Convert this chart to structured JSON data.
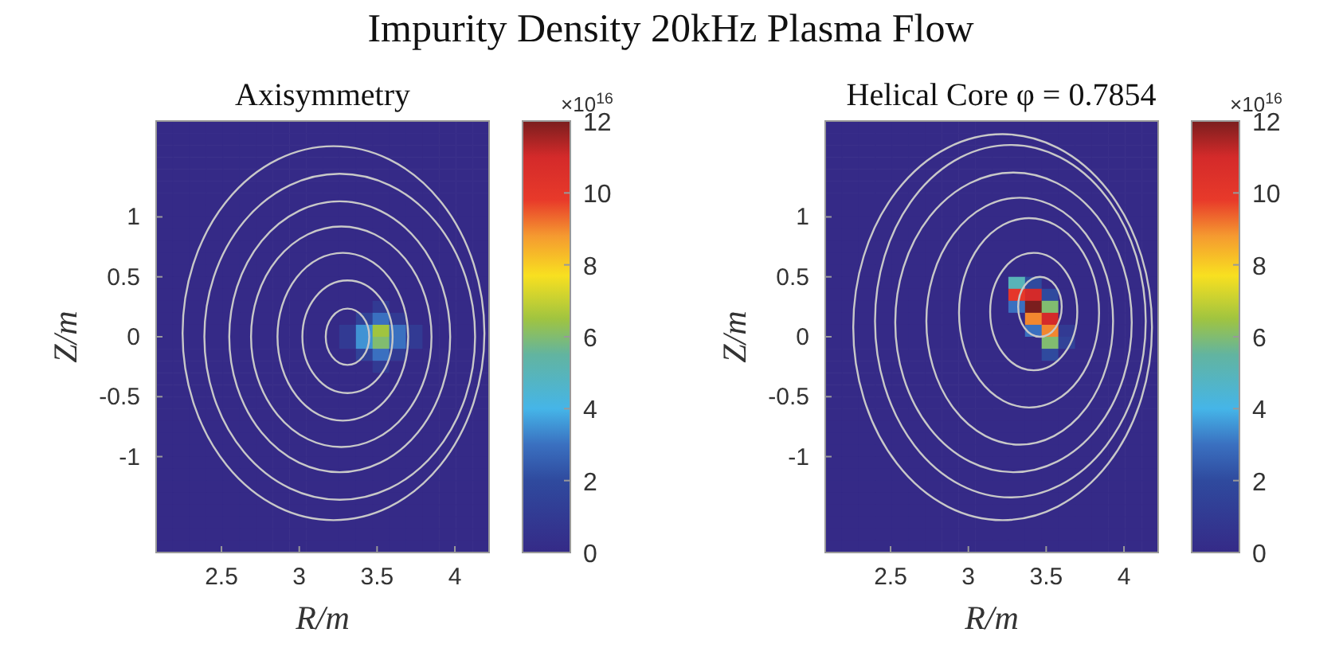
{
  "chart_data": [
    {
      "type": "heatmap",
      "title": "Impurity Density 20kHz Plasma Flow",
      "subtitle": "Axisymmetry",
      "xlabel": "R/m",
      "ylabel": "Z/m",
      "clabel": "×10$^{16}$",
      "xlim": [
        2.08,
        4.22
      ],
      "ylim": [
        -1.8,
        1.8
      ],
      "xticks": [
        2.5,
        3,
        3.5,
        4
      ],
      "yticks": [
        -1,
        -0.5,
        0,
        0.5,
        1
      ],
      "clim": [
        0,
        12
      ],
      "cticks": [
        0,
        2,
        4,
        6,
        8,
        10,
        12
      ],
      "cells": [
        [
          0,
          0,
          0,
          0,
          0,
          0,
          0,
          0,
          0,
          0,
          0,
          0,
          0,
          0,
          0,
          0,
          0,
          0,
          0,
          0
        ],
        [
          0,
          0,
          0,
          0,
          0,
          0,
          0,
          0,
          0,
          0,
          0,
          0,
          0,
          0,
          0,
          0,
          0,
          0,
          0,
          0
        ],
        [
          0,
          0,
          0,
          0,
          0,
          0,
          0,
          0,
          0,
          0,
          0,
          0,
          0,
          0,
          0,
          0,
          0,
          0,
          0,
          0
        ],
        [
          0,
          0,
          0,
          0,
          0,
          0,
          0,
          0,
          0,
          0,
          0,
          0,
          0,
          0,
          0,
          0,
          0,
          0,
          0,
          0
        ],
        [
          0,
          0,
          0,
          0,
          0,
          0,
          0,
          0,
          0,
          0,
          0,
          0,
          0,
          0,
          0,
          0,
          0,
          0,
          0,
          0
        ],
        [
          0,
          0,
          0,
          0,
          0,
          0,
          0,
          0,
          0,
          0,
          0,
          0,
          0,
          0,
          0,
          0,
          0,
          0,
          0,
          0
        ],
        [
          0,
          0,
          0,
          0,
          0,
          0,
          0,
          0,
          0,
          0,
          0,
          0,
          0,
          0,
          0,
          0,
          0,
          0,
          0,
          0
        ],
        [
          0,
          0,
          0,
          0,
          0,
          0,
          0,
          0,
          0,
          0,
          0,
          0,
          0,
          0,
          0,
          0,
          0,
          0,
          0,
          0
        ],
        [
          0,
          0,
          0,
          0,
          0,
          0,
          0,
          0,
          0,
          0,
          0,
          0,
          0,
          0,
          0,
          0,
          0,
          0,
          0,
          0
        ],
        [
          0,
          0,
          0,
          0,
          0,
          0,
          0,
          0,
          0,
          0,
          0,
          0,
          0,
          0,
          0,
          0,
          0,
          0,
          0,
          0
        ],
        [
          0,
          0,
          0,
          0,
          0,
          0,
          0,
          0,
          0,
          0,
          0,
          0,
          0,
          0,
          0,
          0,
          0,
          0,
          0,
          0
        ],
        [
          0,
          0,
          0,
          0,
          0,
          0,
          0,
          0,
          0,
          0,
          0,
          0,
          0,
          0,
          0,
          0,
          0,
          0,
          0,
          0
        ],
        [
          0,
          0,
          0,
          0,
          0,
          0,
          0,
          0,
          0,
          0,
          0,
          0,
          0,
          0,
          0,
          0,
          0,
          0,
          0,
          0
        ],
        [
          0,
          0,
          0,
          0,
          0,
          0,
          0,
          0,
          0,
          0,
          0,
          0,
          0,
          0,
          0,
          0,
          0,
          0,
          0,
          0
        ],
        [
          0,
          0,
          0,
          0,
          0,
          0,
          0,
          0,
          0,
          0,
          0,
          0,
          0,
          0,
          0,
          0,
          0,
          0,
          0,
          0
        ],
        [
          0,
          0,
          0,
          0,
          0,
          0,
          0,
          0,
          0,
          0,
          0,
          0,
          0,
          1,
          0,
          0,
          0,
          0,
          0,
          0
        ],
        [
          0,
          0,
          0,
          0,
          0,
          0,
          0,
          0,
          0,
          0,
          0,
          0,
          1.5,
          3,
          1,
          0,
          0,
          0,
          0,
          0
        ],
        [
          0,
          0,
          0,
          0,
          0,
          0,
          0,
          0,
          0,
          0,
          0,
          1,
          3.5,
          6.5,
          3,
          1,
          0,
          0,
          0,
          0
        ],
        [
          0,
          0,
          0,
          0,
          0,
          0,
          0,
          0,
          0,
          0,
          0,
          1,
          3.5,
          6,
          3,
          1,
          0,
          0,
          0,
          0
        ],
        [
          0,
          0,
          0,
          0,
          0,
          0,
          0,
          0,
          0,
          0,
          0,
          0,
          1.5,
          3,
          1,
          0,
          0,
          0,
          0,
          0
        ],
        [
          0,
          0,
          0,
          0,
          0,
          0,
          0,
          0,
          0,
          0,
          0,
          0,
          0,
          1,
          0,
          0,
          0,
          0,
          0,
          0
        ],
        [
          0,
          0,
          0,
          0,
          0,
          0,
          0,
          0,
          0,
          0,
          0,
          0,
          0,
          0,
          0,
          0,
          0,
          0,
          0,
          0
        ],
        [
          0,
          0,
          0,
          0,
          0,
          0,
          0,
          0,
          0,
          0,
          0,
          0,
          0,
          0,
          0,
          0,
          0,
          0,
          0,
          0
        ],
        [
          0,
          0,
          0,
          0,
          0,
          0,
          0,
          0,
          0,
          0,
          0,
          0,
          0,
          0,
          0,
          0,
          0,
          0,
          0,
          0
        ],
        [
          0,
          0,
          0,
          0,
          0,
          0,
          0,
          0,
          0,
          0,
          0,
          0,
          0,
          0,
          0,
          0,
          0,
          0,
          0,
          0
        ],
        [
          0,
          0,
          0,
          0,
          0,
          0,
          0,
          0,
          0,
          0,
          0,
          0,
          0,
          0,
          0,
          0,
          0,
          0,
          0,
          0
        ],
        [
          0,
          0,
          0,
          0,
          0,
          0,
          0,
          0,
          0,
          0,
          0,
          0,
          0,
          0,
          0,
          0,
          0,
          0,
          0,
          0
        ],
        [
          0,
          0,
          0,
          0,
          0,
          0,
          0,
          0,
          0,
          0,
          0,
          0,
          0,
          0,
          0,
          0,
          0,
          0,
          0,
          0
        ],
        [
          0,
          0,
          0,
          0,
          0,
          0,
          0,
          0,
          0,
          0,
          0,
          0,
          0,
          0,
          0,
          0,
          0,
          0,
          0,
          0
        ],
        [
          0,
          0,
          0,
          0,
          0,
          0,
          0,
          0,
          0,
          0,
          0,
          0,
          0,
          0,
          0,
          0,
          0,
          0,
          0,
          0
        ],
        [
          0,
          0,
          0,
          0,
          0,
          0,
          0,
          0,
          0,
          0,
          0,
          0,
          0,
          0,
          0,
          0,
          0,
          0,
          0,
          0
        ],
        [
          0,
          0,
          0,
          0,
          0,
          0,
          0,
          0,
          0,
          0,
          0,
          0,
          0,
          0,
          0,
          0,
          0,
          0,
          0,
          0
        ],
        [
          0,
          0,
          0,
          0,
          0,
          0,
          0,
          0,
          0,
          0,
          0,
          0,
          0,
          0,
          0,
          0,
          0,
          0,
          0,
          0
        ],
        [
          0,
          0,
          0,
          0,
          0,
          0,
          0,
          0,
          0,
          0,
          0,
          0,
          0,
          0,
          0,
          0,
          0,
          0,
          0,
          0
        ],
        [
          0,
          0,
          0,
          0,
          0,
          0,
          0,
          0,
          0,
          0,
          0,
          0,
          0,
          0,
          0,
          0,
          0,
          0,
          0,
          0
        ],
        [
          0,
          0,
          0,
          0,
          0,
          0,
          0,
          0,
          0,
          0,
          0,
          0,
          0,
          0,
          0,
          0,
          0,
          0,
          0,
          0
        ]
      ]
    },
    {
      "type": "heatmap",
      "subtitle": "Helical Core φ = 0.7854",
      "xlabel": "R/m",
      "ylabel": "Z/m",
      "clabel": "×10$^{16}$",
      "xlim": [
        2.08,
        4.22
      ],
      "ylim": [
        -1.8,
        1.8
      ],
      "xticks": [
        2.5,
        3,
        3.5,
        4
      ],
      "yticks": [
        -1,
        -0.5,
        0,
        0.5,
        1
      ],
      "clim": [
        0,
        12
      ],
      "cticks": [
        0,
        2,
        4,
        6,
        8,
        10,
        12
      ],
      "cells": [
        [
          0,
          0,
          0,
          0,
          0,
          0,
          0,
          0,
          0,
          0,
          0,
          0,
          0,
          0,
          0,
          0,
          0,
          0,
          0,
          0
        ],
        [
          0,
          0,
          0,
          0,
          0,
          0,
          0,
          0,
          0,
          0,
          0,
          0,
          0,
          0,
          0,
          0,
          0,
          0,
          0,
          0
        ],
        [
          0,
          0,
          0,
          0,
          0,
          0,
          0,
          0,
          0,
          0,
          0,
          0,
          0,
          0,
          0,
          0,
          0,
          0,
          0,
          0
        ],
        [
          0,
          0,
          0,
          0,
          0,
          0,
          0,
          0,
          0,
          0,
          0,
          0,
          0,
          0,
          0,
          0,
          0,
          0,
          0,
          0
        ],
        [
          0,
          0,
          0,
          0,
          0,
          0,
          0,
          0,
          0,
          0,
          0,
          0,
          0,
          0,
          0,
          0,
          0,
          0,
          0,
          0
        ],
        [
          0,
          0,
          0,
          0,
          0,
          0,
          0,
          0,
          0,
          0,
          0,
          0,
          0,
          0,
          0,
          0,
          0,
          0,
          0,
          0
        ],
        [
          0,
          0,
          0,
          0,
          0,
          0,
          0,
          0,
          0,
          0,
          0,
          0,
          0,
          0,
          0,
          0,
          0,
          0,
          0,
          0
        ],
        [
          0,
          0,
          0,
          0,
          0,
          0,
          0,
          0,
          0,
          0,
          0,
          0,
          0,
          0,
          0,
          0,
          0,
          0,
          0,
          0
        ],
        [
          0,
          0,
          0,
          0,
          0,
          0,
          0,
          0,
          0,
          0,
          0,
          0,
          0,
          0,
          0,
          0,
          0,
          0,
          0,
          0
        ],
        [
          0,
          0,
          0,
          0,
          0,
          0,
          0,
          0,
          0,
          0,
          0,
          0,
          0,
          0,
          0,
          0,
          0,
          0,
          0,
          0
        ],
        [
          0,
          0,
          0,
          0,
          0,
          0,
          0,
          0,
          0,
          0,
          0,
          0,
          0,
          0,
          0,
          0,
          0,
          0,
          0,
          0
        ],
        [
          0,
          0,
          0,
          0,
          0,
          0,
          0,
          0,
          0,
          0,
          0,
          0,
          0,
          0,
          0,
          0,
          0,
          0,
          0,
          0
        ],
        [
          0,
          0,
          0,
          0,
          0,
          0,
          0,
          0,
          0,
          0,
          0,
          0,
          0,
          0,
          0,
          0,
          0,
          0,
          0,
          0
        ],
        [
          0,
          0,
          0,
          0,
          0,
          0,
          0,
          0,
          0,
          0,
          0,
          5,
          2,
          0,
          0,
          0,
          0,
          0,
          0,
          0
        ],
        [
          0,
          0,
          0,
          0,
          0,
          0,
          0,
          0,
          0,
          0,
          0,
          10,
          11,
          2,
          0,
          0,
          0,
          0,
          0,
          0
        ],
        [
          0,
          0,
          0,
          0,
          0,
          0,
          0,
          0,
          0,
          0,
          0,
          3,
          12,
          6,
          0,
          0,
          0,
          0,
          0,
          0
        ],
        [
          0,
          0,
          0,
          0,
          0,
          0,
          0,
          0,
          0,
          0,
          0,
          0,
          9,
          11,
          0,
          0,
          0,
          0,
          0,
          0
        ],
        [
          0,
          0,
          0,
          0,
          0,
          0,
          0,
          0,
          0,
          0,
          0,
          0,
          3,
          9,
          1,
          0,
          0,
          0,
          0,
          0
        ],
        [
          0,
          0,
          0,
          0,
          0,
          0,
          0,
          0,
          0,
          0,
          0,
          0,
          0,
          6,
          1.5,
          0,
          0,
          0,
          0,
          0
        ],
        [
          0,
          0,
          0,
          0,
          0,
          0,
          0,
          0,
          0,
          0,
          0,
          0,
          0,
          2,
          0,
          0,
          0,
          0,
          0,
          0
        ],
        [
          0,
          0,
          0,
          0,
          0,
          0,
          0,
          0,
          0,
          0,
          0,
          0,
          0,
          0,
          0,
          0,
          0,
          0,
          0,
          0
        ],
        [
          0,
          0,
          0,
          0,
          0,
          0,
          0,
          0,
          0,
          0,
          0,
          0,
          0,
          0,
          0,
          0,
          0,
          0,
          0,
          0
        ],
        [
          0,
          0,
          0,
          0,
          0,
          0,
          0,
          0,
          0,
          0,
          0,
          0,
          0,
          0,
          0,
          0,
          0,
          0,
          0,
          0
        ],
        [
          0,
          0,
          0,
          0,
          0,
          0,
          0,
          0,
          0,
          0,
          0,
          0,
          0,
          0,
          0,
          0,
          0,
          0,
          0,
          0
        ],
        [
          0,
          0,
          0,
          0,
          0,
          0,
          0,
          0,
          0,
          0,
          0,
          0,
          0,
          0,
          0,
          0,
          0,
          0,
          0,
          0
        ],
        [
          0,
          0,
          0,
          0,
          0,
          0,
          0,
          0,
          0,
          0,
          0,
          0,
          0,
          0,
          0,
          0,
          0,
          0,
          0,
          0
        ],
        [
          0,
          0,
          0,
          0,
          0,
          0,
          0,
          0,
          0,
          0,
          0,
          0,
          0,
          0,
          0,
          0,
          0,
          0,
          0,
          0
        ],
        [
          0,
          0,
          0,
          0,
          0,
          0,
          0,
          0,
          0,
          0,
          0,
          0,
          0,
          0,
          0,
          0,
          0,
          0,
          0,
          0
        ],
        [
          0,
          0,
          0,
          0,
          0,
          0,
          0,
          0,
          0,
          0,
          0,
          0,
          0,
          0,
          0,
          0,
          0,
          0,
          0,
          0
        ],
        [
          0,
          0,
          0,
          0,
          0,
          0,
          0,
          0,
          0,
          0,
          0,
          0,
          0,
          0,
          0,
          0,
          0,
          0,
          0,
          0
        ],
        [
          0,
          0,
          0,
          0,
          0,
          0,
          0,
          0,
          0,
          0,
          0,
          0,
          0,
          0,
          0,
          0,
          0,
          0,
          0,
          0
        ],
        [
          0,
          0,
          0,
          0,
          0,
          0,
          0,
          0,
          0,
          0,
          0,
          0,
          0,
          0,
          0,
          0,
          0,
          0,
          0,
          0
        ],
        [
          0,
          0,
          0,
          0,
          0,
          0,
          0,
          0,
          0,
          0,
          0,
          0,
          0,
          0,
          0,
          0,
          0,
          0,
          0,
          0
        ],
        [
          0,
          0,
          0,
          0,
          0,
          0,
          0,
          0,
          0,
          0,
          0,
          0,
          0,
          0,
          0,
          0,
          0,
          0,
          0,
          0
        ],
        [
          0,
          0,
          0,
          0,
          0,
          0,
          0,
          0,
          0,
          0,
          0,
          0,
          0,
          0,
          0,
          0,
          0,
          0,
          0,
          0
        ],
        [
          0,
          0,
          0,
          0,
          0,
          0,
          0,
          0,
          0,
          0,
          0,
          0,
          0,
          0,
          0,
          0,
          0,
          0,
          0,
          0
        ]
      ]
    }
  ]
}
